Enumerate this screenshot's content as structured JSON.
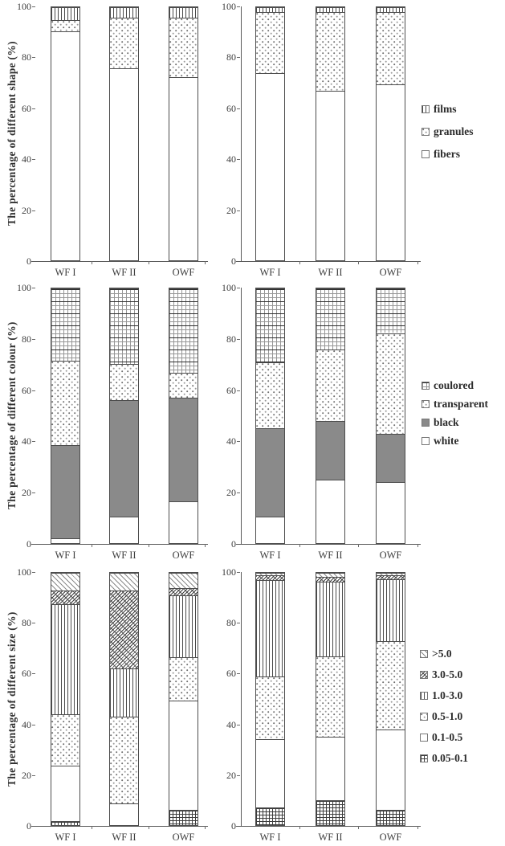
{
  "figure": {
    "categories": [
      "WF I",
      "WF II",
      "OWF"
    ],
    "legend_position": "right"
  },
  "colors": {
    "black_series_fill": "#8a8a8a",
    "axis_line": "#595959",
    "bar_border": "#4d4d4d",
    "text": "#3d3d3d"
  },
  "legends": {
    "shape": {
      "items": [
        {
          "label": "films",
          "pattern": "vstripes"
        },
        {
          "label": "granules",
          "pattern": "dots"
        },
        {
          "label": "fibers",
          "pattern": "plain"
        }
      ]
    },
    "colour": {
      "items": [
        {
          "label": "coulored",
          "pattern": "grid"
        },
        {
          "label": "transparent",
          "pattern": "dots"
        },
        {
          "label": "black",
          "pattern": "solid"
        },
        {
          "label": "white",
          "pattern": "plain"
        }
      ]
    },
    "size": {
      "items": [
        {
          "label": ">5.0",
          "pattern": "diag"
        },
        {
          "label": "3.0-5.0",
          "pattern": "diagx"
        },
        {
          "label": "1.0-3.0",
          "pattern": "vstripes"
        },
        {
          "label": "0.5-1.0",
          "pattern": "dots"
        },
        {
          "label": "0.1-0.5",
          "pattern": "plain"
        },
        {
          "label": "0.05-0.1",
          "pattern": "gridsmall"
        }
      ]
    }
  },
  "chart_data": [
    {
      "type": "bar",
      "stacked": true,
      "panel": "top-left",
      "ylabel": "The percentage of different shape (%)",
      "xlabel": "",
      "categories": [
        "WF I",
        "WF II",
        "OWF"
      ],
      "ylim": [
        0,
        100
      ],
      "yticks": [
        0,
        20,
        40,
        60,
        80,
        100
      ],
      "legend_ref": "shape",
      "series": [
        {
          "name": "fibers",
          "pattern": "plain",
          "values": [
            90.5,
            76,
            72.5
          ]
        },
        {
          "name": "granules",
          "pattern": "dots",
          "values": [
            4.5,
            20,
            23.5
          ]
        },
        {
          "name": "films",
          "pattern": "vstripes",
          "values": [
            5,
            4,
            4
          ]
        }
      ]
    },
    {
      "type": "bar",
      "stacked": true,
      "panel": "top-right",
      "ylabel": "",
      "xlabel": "",
      "categories": [
        "WF I",
        "WF II",
        "OWF"
      ],
      "ylim": [
        0,
        100
      ],
      "yticks": [
        0,
        20,
        40,
        60,
        80,
        100
      ],
      "legend_ref": "shape",
      "series": [
        {
          "name": "fibers",
          "pattern": "plain",
          "values": [
            74,
            67,
            69.5
          ]
        },
        {
          "name": "granules",
          "pattern": "dots",
          "values": [
            24,
            31,
            28.5
          ]
        },
        {
          "name": "films",
          "pattern": "vstripes",
          "values": [
            2,
            2,
            2
          ]
        }
      ]
    },
    {
      "type": "bar",
      "stacked": true,
      "panel": "middle-left",
      "ylabel": "The percentage of different colour (%)",
      "xlabel": "",
      "categories": [
        "WF I",
        "WF II",
        "OWF"
      ],
      "ylim": [
        0,
        100
      ],
      "yticks": [
        0,
        20,
        40,
        60,
        80,
        100
      ],
      "legend_ref": "colour",
      "series": [
        {
          "name": "white",
          "pattern": "plain",
          "values": [
            2,
            10.5,
            16.5
          ]
        },
        {
          "name": "black",
          "pattern": "solid",
          "values": [
            36.5,
            45.5,
            40.5
          ]
        },
        {
          "name": "transparent",
          "pattern": "dots",
          "values": [
            33,
            14.5,
            10
          ]
        },
        {
          "name": "coulored",
          "pattern": "grid",
          "values": [
            28.5,
            29.5,
            33
          ]
        }
      ]
    },
    {
      "type": "bar",
      "stacked": true,
      "panel": "middle-right",
      "ylabel": "",
      "xlabel": "",
      "categories": [
        "WF I",
        "WF II",
        "OWF"
      ],
      "ylim": [
        0,
        100
      ],
      "yticks": [
        0,
        20,
        40,
        60,
        80,
        100
      ],
      "legend_ref": "colour",
      "series": [
        {
          "name": "white",
          "pattern": "plain",
          "values": [
            10.5,
            25,
            24
          ]
        },
        {
          "name": "black",
          "pattern": "solid",
          "values": [
            34.5,
            23,
            19
          ]
        },
        {
          "name": "transparent",
          "pattern": "dots",
          "values": [
            26,
            28,
            39.5
          ]
        },
        {
          "name": "coulored",
          "pattern": "grid",
          "values": [
            29,
            24,
            17.5
          ]
        }
      ]
    },
    {
      "type": "bar",
      "stacked": true,
      "panel": "bottom-left",
      "ylabel": "The percentage of different size (%)",
      "xlabel": "",
      "categories": [
        "WF I",
        "WF II",
        "OWF"
      ],
      "ylim": [
        0,
        100
      ],
      "yticks": [
        0,
        20,
        40,
        60,
        80,
        100
      ],
      "legend_ref": "size",
      "series": [
        {
          "name": "0.05-0.1",
          "pattern": "gridsmall",
          "values": [
            1.5,
            0,
            6
          ]
        },
        {
          "name": "0.1-0.5",
          "pattern": "plain",
          "values": [
            22,
            8.5,
            43.5
          ]
        },
        {
          "name": "0.5-1.0",
          "pattern": "dots",
          "values": [
            20.5,
            34.5,
            17
          ]
        },
        {
          "name": "1.0-3.0",
          "pattern": "vstripes",
          "values": [
            43.5,
            19,
            24.5
          ]
        },
        {
          "name": "3.0-5.0",
          "pattern": "diagx",
          "values": [
            5.5,
            31,
            3
          ]
        },
        {
          "name": ">5.0",
          "pattern": "diag",
          "values": [
            7,
            7,
            6
          ]
        }
      ]
    },
    {
      "type": "bar",
      "stacked": true,
      "panel": "bottom-right",
      "ylabel": "",
      "xlabel": "",
      "categories": [
        "WF I",
        "WF II",
        "OWF"
      ],
      "ylim": [
        0,
        100
      ],
      "yticks": [
        0,
        20,
        40,
        60,
        80,
        100
      ],
      "legend_ref": "size",
      "series": [
        {
          "name": "0.05-0.1",
          "pattern": "gridsmall",
          "values": [
            7,
            10,
            6
          ]
        },
        {
          "name": "0.1-0.5",
          "pattern": "plain",
          "values": [
            27,
            25,
            32
          ]
        },
        {
          "name": "0.5-1.0",
          "pattern": "dots",
          "values": [
            25,
            32,
            35
          ]
        },
        {
          "name": "1.0-3.0",
          "pattern": "vstripes",
          "values": [
            38,
            29.5,
            24.5
          ]
        },
        {
          "name": "3.0-5.0",
          "pattern": "diagx",
          "values": [
            2,
            2,
            1.5
          ]
        },
        {
          "name": ">5.0",
          "pattern": "diag",
          "values": [
            1,
            1.5,
            1
          ]
        }
      ]
    }
  ]
}
